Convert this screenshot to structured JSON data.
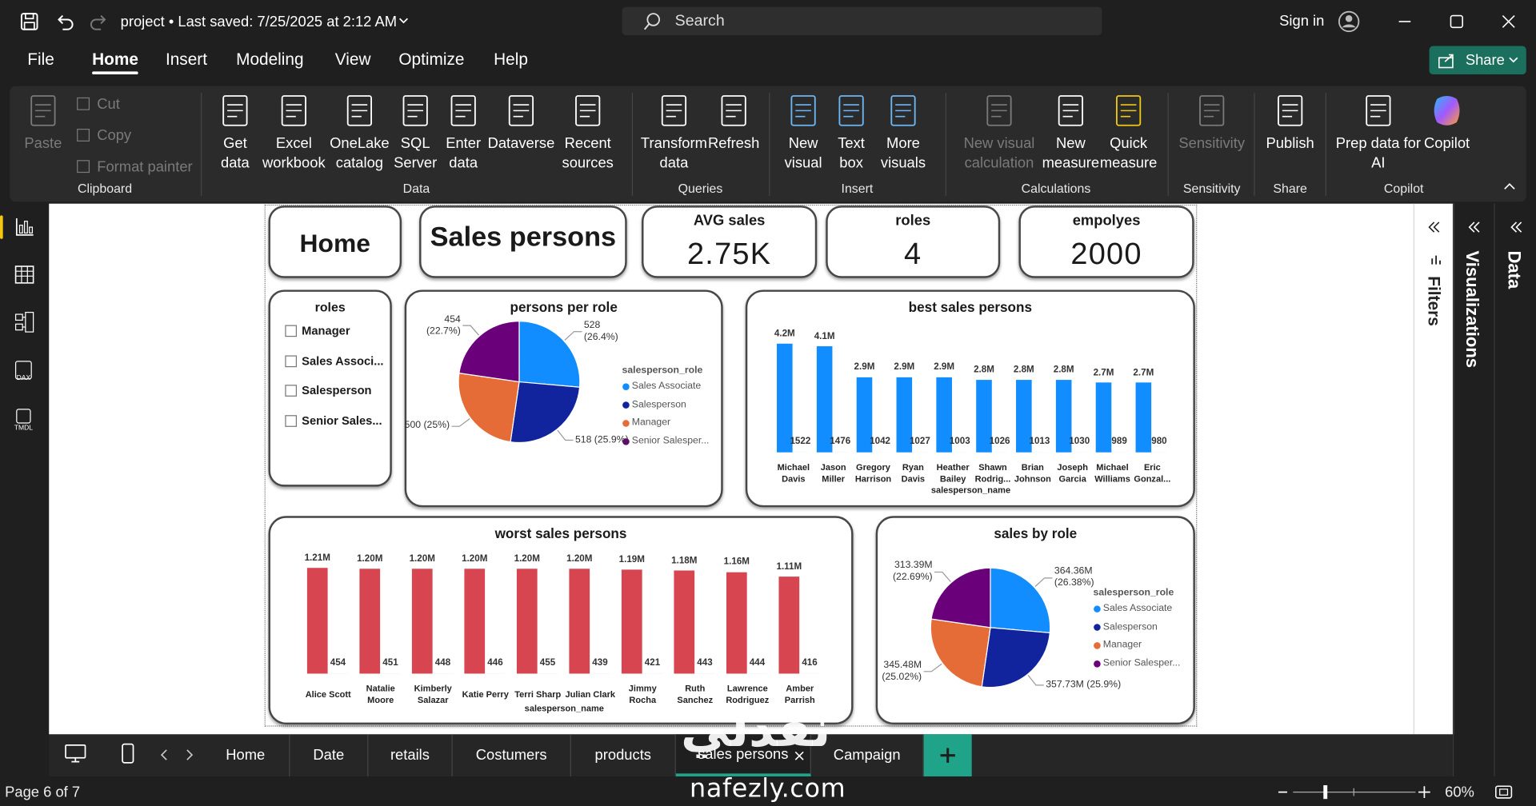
{
  "title_bar": {
    "document_status": "project • Last saved: 7/25/2025 at 2:12 AM",
    "search": "Search",
    "sign_in": "Sign in"
  },
  "menu": [
    "File",
    "Home",
    "Insert",
    "Modeling",
    "View",
    "Optimize",
    "Help"
  ],
  "share": "Share",
  "ribbon": [
    {
      "label": "Clipboard",
      "items": [
        "Paste",
        "Cut",
        "Copy",
        "Format painter"
      ]
    },
    {
      "label": "Data",
      "items": [
        "Get\ndata",
        "Excel\nworkbook",
        "OneLake\ncatalog",
        "SQL\nServer",
        "Enter\ndata",
        "Dataverse",
        "Recent\nsources"
      ]
    },
    {
      "label": "Queries",
      "items": [
        "Transform\ndata",
        "Refresh"
      ]
    },
    {
      "label": "Insert",
      "items": [
        "New\nvisual",
        "Text\nbox",
        "More\nvisuals"
      ]
    },
    {
      "label": "Calculations",
      "items": [
        "New visual\ncalculation",
        "New\nmeasure",
        "Quick\nmeasure"
      ]
    },
    {
      "label": "Sensitivity",
      "items": [
        "Sensitivity"
      ]
    },
    {
      "label": "Share",
      "items": [
        "Publish"
      ]
    },
    {
      "label": "Copilot",
      "items": [
        "Prep data for\nAI",
        "Copilot"
      ]
    }
  ],
  "report": {
    "home_button": "Home",
    "page_title": "Sales persons",
    "kpis": [
      {
        "label": "AVG sales",
        "value": "2.75K"
      },
      {
        "label": "roles",
        "value": 4
      },
      {
        "label": "empolyes",
        "value": 2000
      }
    ],
    "slicer": {
      "title": "roles",
      "items": [
        "Manager",
        "Sales Associ...",
        "Salesperson",
        "Senior Sales..."
      ]
    },
    "persons_per_role": {
      "type": "pie",
      "title": "persons per role",
      "legend_title": "salesperson_role",
      "categories": [
        "Sales Associate",
        "Salesperson",
        "Manager",
        "Senior Salesper..."
      ],
      "colors": [
        "#118dff",
        "#12239e",
        "#e66c37",
        "#6b007b"
      ],
      "values": [
        528,
        518,
        500,
        454
      ],
      "value_labels": [
        "528\n(26.4%)",
        "518 (25.9%)",
        "500 (25%)",
        "454\n(22.7%)"
      ]
    },
    "best_sales_persons": {
      "type": "bar",
      "title": "best sales persons",
      "x_label": "salesperson_name",
      "categories": [
        "Michael\nDavis",
        "Jason\nMiller",
        "Gregory\nHarrison",
        "Ryan\nDavis",
        "Heather\nBailey",
        "Shawn\nRodrig...",
        "Brian\nJohnson",
        "Joseph\nGarcia",
        "Michael\nWilliams",
        "Eric\nGonzal..."
      ],
      "series": [
        {
          "color": "#118dff",
          "values": [
            4200000,
            4100000,
            2900000,
            2900000,
            2900000,
            2800000,
            2800000,
            2800000,
            2700000,
            2700000
          ],
          "value_labels": [
            "4.2M",
            "4.1M",
            "2.9M",
            "2.9M",
            "2.9M",
            "2.8M",
            "2.8M",
            "2.8M",
            "2.7M",
            "2.7M"
          ]
        },
        {
          "color": "#118dff",
          "values": [
            1522,
            1476,
            1042,
            1027,
            1003,
            1026,
            1013,
            1030,
            989,
            980
          ]
        }
      ]
    },
    "worst_sales_persons": {
      "type": "bar",
      "title": "worst sales persons",
      "x_label": "salesperson_name",
      "categories": [
        "Alice Scott",
        "Natalie\nMoore",
        "Kimberly\nSalazar",
        "Katie Perry",
        "Terri Sharp",
        "Julian Clark",
        "Jimmy\nRocha",
        "Ruth\nSanchez",
        "Lawrence\nRodriguez",
        "Amber\nParrish"
      ],
      "series": [
        {
          "color": "#d64550",
          "values": [
            1210000,
            1200000,
            1200000,
            1200000,
            1200000,
            1200000,
            1190000,
            1180000,
            1160000,
            1110000
          ],
          "value_labels": [
            "1.21M",
            "1.20M",
            "1.20M",
            "1.20M",
            "1.20M",
            "1.20M",
            "1.19M",
            "1.18M",
            "1.16M",
            "1.11M"
          ]
        },
        {
          "color": "#d64550",
          "values": [
            454,
            451,
            448,
            446,
            455,
            439,
            421,
            443,
            444,
            416
          ]
        }
      ]
    },
    "sales_by_role": {
      "type": "pie",
      "title": "sales by role",
      "legend_title": "salesperson_role",
      "categories": [
        "Sales Associate",
        "Salesperson",
        "Manager",
        "Senior Salesper..."
      ],
      "colors": [
        "#118dff",
        "#12239e",
        "#e66c37",
        "#6b007b"
      ],
      "values": [
        364360000,
        357730000,
        345480000,
        313390000
      ],
      "value_labels": [
        "364.36M\n(26.38%)",
        "357.73M (25.9%)",
        "345.48M\n(25.02%)",
        "313.39M\n(22.69%)"
      ]
    }
  },
  "panes": {
    "filters": "Filters",
    "visualizations": "Visualizations",
    "data": "Data"
  },
  "tabs": [
    "Home",
    "Date",
    "retails",
    "Costumers",
    "products",
    "sales persons",
    "Campaign"
  ],
  "watermark": {
    "arabic": "نفذلي",
    "site": "nafezly.com"
  },
  "status_bar": {
    "page": "Page 6 of 7",
    "zoom": "60%"
  }
}
